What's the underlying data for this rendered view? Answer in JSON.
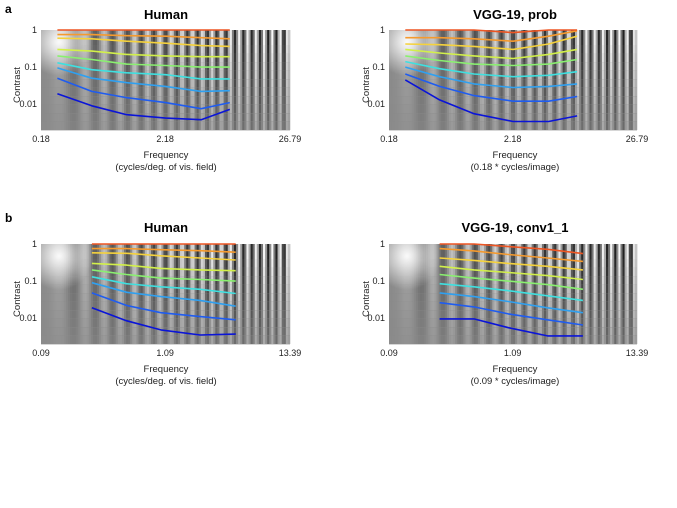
{
  "panel_letters": [
    "a",
    "b"
  ],
  "chart_data": [
    {
      "type": "line",
      "panel": "a",
      "title": "Human",
      "xlabel": "Frequency",
      "xlabel_sub": "(cycles/deg. of vis. field)",
      "ylabel": "Contrast",
      "x_scale": "log",
      "y_scale": "log",
      "xlim": [
        0.18,
        26.79
      ],
      "ylim": [
        0.002,
        1
      ],
      "xticks": [
        "0.18",
        "2.18",
        "26.79"
      ],
      "yticks": [
        "1",
        "0.1",
        "0.01"
      ],
      "background": "sine-grating contrast-sensitivity image",
      "line_colors": [
        "#0a14d8",
        "#1f5cf0",
        "#2fa0f0",
        "#3ee0e0",
        "#8af070",
        "#d2f04a",
        "#f5d23c",
        "#f59a2e",
        "#ee5522"
      ],
      "x": [
        0.25,
        0.5,
        1.0,
        2.2,
        4.5,
        8.0
      ],
      "series": [
        {
          "values": [
            0.019,
            0.009,
            0.0052,
            0.0042,
            0.0038,
            0.0072
          ]
        },
        {
          "values": [
            0.05,
            0.022,
            0.015,
            0.011,
            0.0075,
            0.011
          ]
        },
        {
          "values": [
            0.095,
            0.05,
            0.038,
            0.03,
            0.022,
            0.023
          ]
        },
        {
          "values": [
            0.13,
            0.085,
            0.07,
            0.062,
            0.048,
            0.048
          ]
        },
        {
          "values": [
            0.2,
            0.16,
            0.12,
            0.11,
            0.1,
            0.1
          ]
        },
        {
          "values": [
            0.3,
            0.27,
            0.22,
            0.2,
            0.19,
            0.19
          ]
        },
        {
          "values": [
            0.6,
            0.58,
            0.5,
            0.44,
            0.38,
            0.36
          ]
        },
        {
          "values": [
            0.75,
            0.75,
            0.7,
            0.68,
            0.62,
            0.58
          ]
        },
        {
          "values": [
            1.0,
            1.0,
            1.0,
            1.0,
            1.0,
            1.0
          ]
        }
      ]
    },
    {
      "type": "line",
      "panel": "a",
      "title": "VGG-19, prob",
      "xlabel": "Frequency",
      "xlabel_sub": "(0.18 * cycles/image)",
      "ylabel": "Contrast",
      "x_scale": "log",
      "y_scale": "log",
      "xlim": [
        0.18,
        26.79
      ],
      "ylim": [
        0.002,
        1
      ],
      "xticks": [
        "0.18",
        "2.18",
        "26.79"
      ],
      "yticks": [
        "1",
        "0.1",
        "0.01"
      ],
      "background": "sine-grating contrast-sensitivity image",
      "line_colors": [
        "#0a14d8",
        "#1f5cf0",
        "#2fa0f0",
        "#3ee0e0",
        "#8af070",
        "#d2f04a",
        "#f5d23c",
        "#f59a2e",
        "#ee5522"
      ],
      "x": [
        0.25,
        0.5,
        1.0,
        2.2,
        4.5,
        8.0
      ],
      "series": [
        {
          "values": [
            0.045,
            0.013,
            0.0055,
            0.0034,
            0.0034,
            0.0048
          ]
        },
        {
          "values": [
            0.065,
            0.03,
            0.017,
            0.012,
            0.012,
            0.016
          ]
        },
        {
          "values": [
            0.1,
            0.055,
            0.035,
            0.028,
            0.03,
            0.035
          ]
        },
        {
          "values": [
            0.14,
            0.09,
            0.065,
            0.055,
            0.06,
            0.075
          ]
        },
        {
          "values": [
            0.2,
            0.15,
            0.12,
            0.11,
            0.12,
            0.16
          ]
        },
        {
          "values": [
            0.3,
            0.24,
            0.2,
            0.17,
            0.22,
            0.3
          ]
        },
        {
          "values": [
            0.42,
            0.4,
            0.36,
            0.3,
            0.42,
            0.68
          ]
        },
        {
          "values": [
            0.62,
            0.62,
            0.58,
            0.5,
            0.68,
            0.95
          ]
        },
        {
          "values": [
            1.0,
            1.0,
            1.0,
            0.85,
            1.0,
            1.0
          ]
        }
      ]
    },
    {
      "type": "line",
      "panel": "b",
      "title": "Human",
      "xlabel": "Frequency",
      "xlabel_sub": "(cycles/deg. of vis. field)",
      "ylabel": "Contrast",
      "x_scale": "log",
      "y_scale": "log",
      "xlim": [
        0.09,
        13.39
      ],
      "ylim": [
        0.002,
        1
      ],
      "xticks": [
        "0.09",
        "1.09",
        "13.39"
      ],
      "yticks": [
        "1",
        "0.1",
        "0.01"
      ],
      "background": "sine-grating contrast-sensitivity image",
      "line_colors": [
        "#0a14d8",
        "#1f5cf0",
        "#2fa0f0",
        "#3ee0e0",
        "#8af070",
        "#d2f04a",
        "#f5d23c",
        "#f59a2e",
        "#ee5522"
      ],
      "x": [
        0.25,
        0.5,
        1.0,
        2.2,
        4.5
      ],
      "series": [
        {
          "values": [
            0.019,
            0.0085,
            0.0048,
            0.0035,
            0.0037
          ]
        },
        {
          "values": [
            0.048,
            0.022,
            0.014,
            0.011,
            0.009
          ]
        },
        {
          "values": [
            0.09,
            0.05,
            0.038,
            0.03,
            0.021
          ]
        },
        {
          "values": [
            0.13,
            0.085,
            0.07,
            0.06,
            0.046
          ]
        },
        {
          "values": [
            0.2,
            0.15,
            0.12,
            0.11,
            0.1
          ]
        },
        {
          "values": [
            0.3,
            0.27,
            0.22,
            0.2,
            0.19
          ]
        },
        {
          "values": [
            0.58,
            0.56,
            0.48,
            0.42,
            0.37
          ]
        },
        {
          "values": [
            0.75,
            0.75,
            0.7,
            0.66,
            0.6
          ]
        },
        {
          "values": [
            1.0,
            1.0,
            1.0,
            1.0,
            1.0
          ]
        }
      ]
    },
    {
      "type": "line",
      "panel": "b",
      "title": "VGG-19, conv1_1",
      "xlabel": "Frequency",
      "xlabel_sub": "(0.09 * cycles/image)",
      "ylabel": "Contrast",
      "x_scale": "log",
      "y_scale": "log",
      "xlim": [
        0.09,
        13.39
      ],
      "ylim": [
        0.002,
        1
      ],
      "xticks": [
        "0.09",
        "1.09",
        "13.39"
      ],
      "yticks": [
        "1",
        "0.1",
        "0.01"
      ],
      "background": "sine-grating contrast-sensitivity image",
      "line_colors": [
        "#0a14d8",
        "#1f5cf0",
        "#2fa0f0",
        "#3ee0e0",
        "#8af070",
        "#d2f04a",
        "#f5d23c",
        "#f59a2e",
        "#ee5522"
      ],
      "x": [
        0.25,
        0.5,
        1.0,
        2.2,
        4.5
      ],
      "series": [
        {
          "values": [
            0.0095,
            0.0095,
            0.0055,
            0.0033,
            0.0033
          ]
        },
        {
          "values": [
            0.026,
            0.02,
            0.013,
            0.009,
            0.0065
          ]
        },
        {
          "values": [
            0.048,
            0.038,
            0.028,
            0.019,
            0.014
          ]
        },
        {
          "values": [
            0.085,
            0.07,
            0.055,
            0.04,
            0.03
          ]
        },
        {
          "values": [
            0.15,
            0.12,
            0.1,
            0.08,
            0.06
          ]
        },
        {
          "values": [
            0.25,
            0.2,
            0.17,
            0.14,
            0.11
          ]
        },
        {
          "values": [
            0.42,
            0.36,
            0.3,
            0.25,
            0.2
          ]
        },
        {
          "values": [
            0.75,
            0.65,
            0.52,
            0.42,
            0.34
          ]
        },
        {
          "values": [
            1.0,
            1.0,
            0.85,
            0.72,
            0.55
          ]
        }
      ]
    }
  ]
}
